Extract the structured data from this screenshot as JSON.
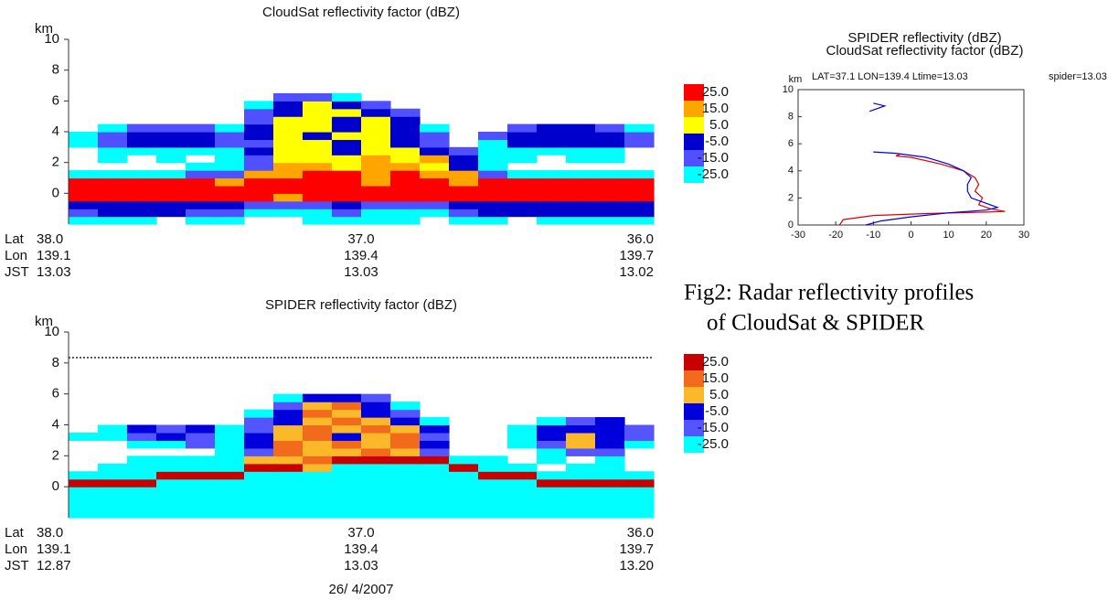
{
  "chart_data": [
    {
      "type": "heatmap",
      "title": "CloudSat reflectivity factor (dBZ)",
      "ylabel": "km",
      "ylim": [
        -2,
        10
      ],
      "yticks": [
        0,
        2,
        4,
        6,
        8,
        10
      ],
      "xlim": [
        38,
        36
      ],
      "xlabel": "Lat",
      "xticks": [
        {
          "value": 38,
          "label": "38.0"
        },
        {
          "value": 37,
          "label": "37.0"
        },
        {
          "value": 36,
          "label": "36.0"
        }
      ],
      "extra_rows": [
        {
          "label": "Lon",
          "ticks": [
            "139.1",
            "139.4",
            "139.7"
          ]
        },
        {
          "label": "JST",
          "ticks": [
            "13.03",
            "13.03",
            "13.02"
          ]
        }
      ],
      "x": [
        37.95,
        37.85,
        37.75,
        37.65,
        37.55,
        37.45,
        37.35,
        37.25,
        37.15,
        37.05,
        36.95,
        36.85,
        36.75,
        36.65,
        36.55,
        36.45,
        36.35,
        36.25,
        36.15,
        36.05
      ],
      "y": [
        -1.75,
        -1.25,
        -0.75,
        -0.25,
        0.25,
        0.75,
        1.25,
        1.75,
        2.25,
        2.75,
        3.25,
        3.75,
        4.25,
        4.75,
        5.25,
        5.75,
        6.25
      ],
      "z": [
        [
          -20,
          -20,
          -20,
          null,
          -20,
          -20,
          null,
          null,
          -20,
          -20,
          -20,
          -20,
          null,
          -20,
          -20,
          null,
          -20,
          -20,
          -20,
          -20
        ],
        [
          -10,
          0,
          0,
          0,
          -10,
          -10,
          -20,
          -20,
          -20,
          -10,
          -20,
          -20,
          -20,
          -10,
          0,
          0,
          0,
          0,
          0,
          0
        ],
        [
          0,
          0,
          0,
          0,
          0,
          0,
          -10,
          -10,
          -10,
          0,
          -10,
          -10,
          -10,
          0,
          0,
          0,
          0,
          0,
          0,
          0
        ],
        [
          30,
          30,
          30,
          30,
          30,
          30,
          30,
          20,
          30,
          30,
          30,
          30,
          30,
          30,
          30,
          30,
          30,
          30,
          30,
          30
        ],
        [
          30,
          30,
          30,
          30,
          30,
          30,
          30,
          30,
          30,
          30,
          30,
          30,
          30,
          30,
          30,
          30,
          30,
          30,
          30,
          30
        ],
        [
          30,
          30,
          30,
          30,
          30,
          20,
          30,
          30,
          30,
          30,
          20,
          30,
          30,
          20,
          30,
          30,
          30,
          30,
          30,
          30
        ],
        [
          -20,
          -20,
          -20,
          -20,
          -10,
          -10,
          20,
          20,
          30,
          30,
          20,
          30,
          20,
          20,
          -10,
          -20,
          -20,
          -20,
          -20,
          -20
        ],
        [
          null,
          null,
          null,
          null,
          -20,
          -20,
          -10,
          20,
          20,
          10,
          20,
          20,
          10,
          0,
          -20,
          null,
          null,
          null,
          null,
          null
        ],
        [
          null,
          -20,
          null,
          -20,
          null,
          -20,
          -10,
          10,
          10,
          10,
          20,
          10,
          20,
          0,
          -20,
          -20,
          null,
          -20,
          -20,
          null
        ],
        [
          null,
          -20,
          -20,
          -20,
          -20,
          -20,
          0,
          10,
          10,
          0,
          10,
          10,
          0,
          -10,
          -20,
          -20,
          -20,
          -20,
          -20,
          null
        ],
        [
          -20,
          -10,
          0,
          0,
          0,
          -10,
          -10,
          10,
          10,
          0,
          10,
          0,
          -10,
          null,
          -20,
          0,
          0,
          0,
          0,
          -10
        ],
        [
          -20,
          -10,
          0,
          0,
          0,
          -10,
          0,
          10,
          0,
          10,
          10,
          0,
          -10,
          null,
          -10,
          0,
          0,
          0,
          0,
          -10
        ],
        [
          null,
          -20,
          -10,
          -10,
          -10,
          -20,
          0,
          10,
          10,
          0,
          10,
          0,
          -20,
          null,
          null,
          -10,
          0,
          0,
          -10,
          -20
        ],
        [
          null,
          null,
          null,
          null,
          null,
          null,
          -10,
          10,
          10,
          0,
          10,
          0,
          null,
          null,
          null,
          null,
          null,
          null,
          null,
          null
        ],
        [
          null,
          null,
          null,
          null,
          null,
          null,
          -10,
          0,
          10,
          10,
          0,
          -10,
          null,
          null,
          null,
          null,
          null,
          null,
          null,
          null
        ],
        [
          null,
          null,
          null,
          null,
          null,
          null,
          -20,
          0,
          10,
          0,
          -10,
          null,
          null,
          null,
          null,
          null,
          null,
          null,
          null,
          null
        ],
        [
          null,
          null,
          null,
          null,
          null,
          null,
          null,
          -10,
          -10,
          -20,
          null,
          null,
          null,
          null,
          null,
          null,
          null,
          null,
          null,
          null
        ]
      ],
      "colorbar": {
        "levels": [
          {
            "value": 25,
            "label": "25.0"
          },
          {
            "value": 15,
            "label": "15.0"
          },
          {
            "value": 5,
            "label": "5.0"
          },
          {
            "value": -5,
            "label": "-5.0"
          },
          {
            "value": -15,
            "label": "-15.0"
          },
          {
            "value": -25,
            "label": "-25.0"
          }
        ],
        "colors": [
          "#ff0000",
          "#ffa500",
          "#ffff00",
          "#0000cd",
          "#5050ff",
          "#00ffff"
        ]
      }
    },
    {
      "type": "heatmap",
      "title": "SPIDER reflectivity factor (dBZ)",
      "ylabel": "km",
      "ylim": [
        -2,
        10
      ],
      "yticks": [
        0,
        2,
        4,
        6,
        8,
        10
      ],
      "xlim": [
        38,
        36
      ],
      "xlabel": "Lat",
      "xticks": [
        {
          "value": 38,
          "label": "38.0"
        },
        {
          "value": 37,
          "label": "37.0"
        },
        {
          "value": 36,
          "label": "36.0"
        }
      ],
      "extra_rows": [
        {
          "label": "Lon",
          "ticks": [
            "139.1",
            "139.4",
            "139.7"
          ]
        },
        {
          "label": "JST",
          "ticks": [
            "12.87",
            "13.03",
            "13.20"
          ]
        }
      ],
      "date": "26/ 4/2007",
      "x": [
        37.95,
        37.85,
        37.75,
        37.65,
        37.55,
        37.45,
        37.35,
        37.25,
        37.15,
        37.05,
        36.95,
        36.85,
        36.75,
        36.65,
        36.55,
        36.45,
        36.35,
        36.25,
        36.15,
        36.05
      ],
      "y": [
        -1.75,
        -1.25,
        -0.75,
        -0.25,
        0.25,
        0.75,
        1.25,
        1.75,
        2.25,
        2.75,
        3.25,
        3.75,
        4.25,
        4.75,
        5.25,
        5.75,
        6.25
      ],
      "z": [
        [
          -20,
          -20,
          -20,
          -20,
          -20,
          -20,
          -20,
          -20,
          -20,
          -20,
          -20,
          -20,
          -20,
          -20,
          -20,
          -20,
          -20,
          -20,
          -20,
          -20
        ],
        [
          -20,
          -20,
          -20,
          -20,
          -20,
          -20,
          -20,
          -20,
          -20,
          -20,
          -20,
          -20,
          -20,
          -20,
          -20,
          -20,
          -20,
          -20,
          -20,
          -20
        ],
        [
          -20,
          -20,
          -20,
          -20,
          -20,
          -20,
          -20,
          -20,
          -20,
          -20,
          -20,
          -20,
          -20,
          -20,
          -20,
          -20,
          -20,
          -20,
          -20,
          -20
        ],
        [
          -20,
          -20,
          -20,
          -20,
          -20,
          -20,
          -20,
          -20,
          -20,
          -20,
          -20,
          -20,
          -20,
          -20,
          -20,
          -20,
          -20,
          -20,
          -20,
          -20
        ],
        [
          30,
          30,
          30,
          -20,
          -20,
          -20,
          -20,
          -20,
          -20,
          -20,
          -20,
          -20,
          -20,
          -20,
          -20,
          -20,
          30,
          30,
          30,
          30
        ],
        [
          -20,
          -20,
          -20,
          30,
          30,
          30,
          -20,
          -20,
          -20,
          -20,
          -20,
          -20,
          -20,
          -20,
          30,
          30,
          -20,
          -20,
          -20,
          -20
        ],
        [
          null,
          -20,
          -20,
          -20,
          -20,
          -20,
          30,
          30,
          10,
          -20,
          -20,
          -20,
          -20,
          30,
          -20,
          -20,
          null,
          -20,
          -20,
          null
        ],
        [
          null,
          null,
          -20,
          -20,
          -20,
          -20,
          10,
          10,
          20,
          30,
          30,
          30,
          30,
          -20,
          -20,
          null,
          -20,
          null,
          -20,
          null
        ],
        [
          null,
          null,
          null,
          null,
          null,
          -20,
          -10,
          20,
          10,
          10,
          20,
          10,
          -10,
          null,
          null,
          null,
          -20,
          -10,
          -10,
          null
        ],
        [
          null,
          null,
          -20,
          -20,
          -10,
          -20,
          0,
          20,
          10,
          20,
          10,
          20,
          0,
          null,
          null,
          -20,
          -10,
          10,
          0,
          -20
        ],
        [
          -20,
          -20,
          -10,
          0,
          -10,
          -20,
          0,
          10,
          20,
          0,
          10,
          20,
          -10,
          null,
          null,
          -20,
          0,
          10,
          0,
          -10
        ],
        [
          null,
          -20,
          0,
          -10,
          0,
          -20,
          -10,
          10,
          20,
          10,
          20,
          10,
          0,
          null,
          null,
          -20,
          0,
          0,
          0,
          -10
        ],
        [
          null,
          null,
          null,
          null,
          null,
          null,
          -10,
          0,
          10,
          20,
          10,
          0,
          -20,
          null,
          null,
          null,
          -20,
          -10,
          0,
          null
        ],
        [
          null,
          null,
          null,
          null,
          null,
          null,
          -20,
          0,
          20,
          10,
          0,
          -10,
          null,
          null,
          null,
          null,
          null,
          null,
          null,
          null
        ],
        [
          null,
          null,
          null,
          null,
          null,
          null,
          null,
          -10,
          10,
          20,
          0,
          -20,
          null,
          null,
          null,
          null,
          null,
          null,
          null,
          null
        ],
        [
          null,
          null,
          null,
          null,
          null,
          null,
          null,
          -20,
          0,
          0,
          -10,
          null,
          null,
          null,
          null,
          null,
          null,
          null,
          null,
          null
        ],
        [
          null,
          null,
          null,
          null,
          null,
          null,
          null,
          null,
          null,
          null,
          null,
          null,
          null,
          null,
          null,
          null,
          null,
          null,
          null,
          null
        ]
      ],
      "colorbar": {
        "levels": [
          {
            "value": 25,
            "label": "25.0"
          },
          {
            "value": 15,
            "label": "15.0"
          },
          {
            "value": 5,
            "label": "5.0"
          },
          {
            "value": -5,
            "label": "-5.0"
          },
          {
            "value": -15,
            "label": "-15.0"
          },
          {
            "value": -25,
            "label": "-25.0"
          }
        ],
        "colors": [
          "#c80000",
          "#f26a1b",
          "#fbb829",
          "#0000dd",
          "#5555ff",
          "#00ffff"
        ]
      }
    },
    {
      "type": "line",
      "ylabel": "km",
      "annotation": "LAT=37.1 LON=139.4 Ltime=13.03",
      "annotation2": "spider=13.03",
      "xlim": [
        -30,
        30
      ],
      "xticks": [
        -30,
        -20,
        -10,
        0,
        10,
        20,
        30
      ],
      "ylim": [
        0,
        10
      ],
      "yticks": [
        0,
        2,
        4,
        6,
        8,
        10
      ],
      "series": [
        {
          "name": "SPIDER reflectivity (dBZ)",
          "color": "#e00000",
          "x": [
            -19,
            -18,
            -10,
            5,
            20,
            25,
            21,
            18,
            19,
            17,
            18,
            17,
            14,
            8,
            0,
            -4,
            -3
          ],
          "y": [
            0,
            0.4,
            0.7,
            0.85,
            0.95,
            1.0,
            1.2,
            1.5,
            2,
            2.5,
            3,
            3.5,
            4,
            4.5,
            5,
            5.1,
            5.2
          ]
        },
        {
          "name": "CloudSat reflectivity factor (dBZ)",
          "color": "#0000e0",
          "x": [
            -12,
            -8,
            0,
            10,
            20,
            23,
            20,
            16,
            15,
            15,
            16,
            14,
            10,
            4,
            -4,
            -10,
            null,
            -11,
            -7,
            -10
          ],
          "y": [
            0,
            0.3,
            0.6,
            0.9,
            1.1,
            1.3,
            1.6,
            2,
            2.5,
            3,
            3.5,
            4,
            4.5,
            5,
            5.3,
            5.4,
            null,
            8.4,
            8.8,
            9.0
          ]
        }
      ]
    }
  ],
  "caption": [
    "Fig2: Radar reflectivity profiles",
    "of CloudSat & SPIDER"
  ]
}
